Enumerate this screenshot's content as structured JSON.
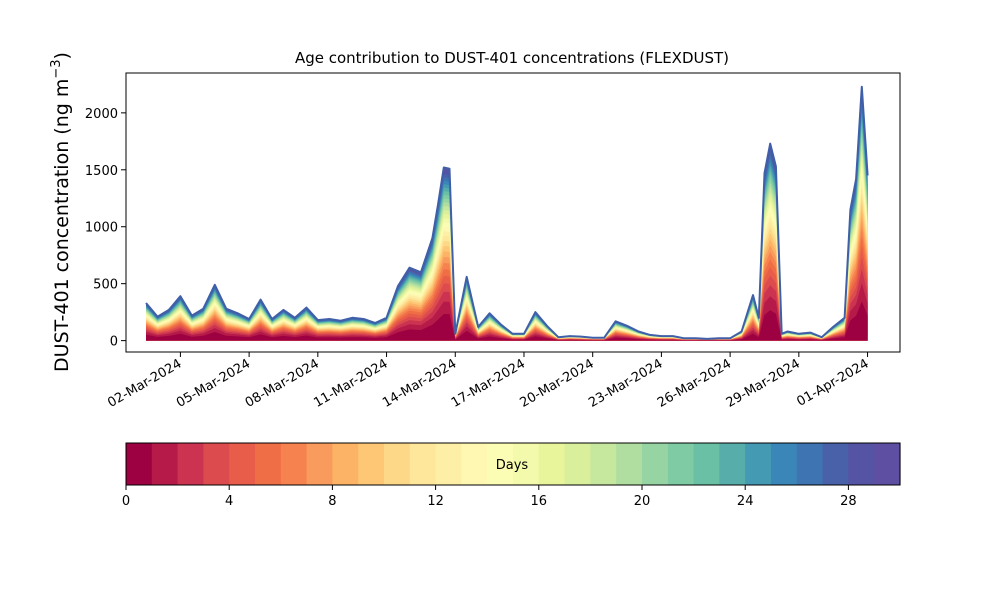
{
  "chart_data": {
    "type": "area",
    "title": "Age contribution to DUST-401 concentrations (FLEXDUST)",
    "ylabel": "DUST-401 concentration (ng m",
    "ylabel_sup": "−3",
    "ylabel_close": ")",
    "ylim": [
      -100,
      2350
    ],
    "yticks": [
      0,
      500,
      1000,
      1500,
      2000
    ],
    "xlim": [
      "2024-02-28T15:00",
      "2024-04-02T10:00"
    ],
    "xticks": [
      "02-Mar-2024",
      "05-Mar-2024",
      "08-Mar-2024",
      "11-Mar-2024",
      "14-Mar-2024",
      "17-Mar-2024",
      "20-Mar-2024",
      "23-Mar-2024",
      "26-Mar-2024",
      "29-Mar-2024",
      "01-Apr-2024"
    ],
    "xtick_dates": [
      "2024-03-02",
      "2024-03-05",
      "2024-03-08",
      "2024-03-11",
      "2024-03-14",
      "2024-03-17",
      "2024-03-20",
      "2024-03-23",
      "2024-03-26",
      "2024-03-29",
      "2024-04-01"
    ],
    "grid": false,
    "colormap": "Spectral",
    "colorbar": {
      "label": "Days",
      "range": [
        0,
        30
      ],
      "ticks": [
        0,
        4,
        8,
        12,
        16,
        20,
        24,
        28
      ],
      "levels": 30,
      "colors": [
        "#9e0142",
        "#b51a49",
        "#cc3350",
        "#dc4b4e",
        "#e85c4a",
        "#f06e45",
        "#f6834f",
        "#f99b5c",
        "#fdb366",
        "#fdc776",
        "#fdd889",
        "#fee79b",
        "#feefa6",
        "#fef8b2",
        "#fbfdb4",
        "#f3faab",
        "#e8f59b",
        "#d9ef9b",
        "#c6e79e",
        "#b0dea0",
        "#97d4a4",
        "#7ecba4",
        "#69c0a4",
        "#56adaa",
        "#4499b3",
        "#3a86b8",
        "#3d74b1",
        "#4861a8",
        "#5553a3",
        "#5e4fa2"
      ]
    },
    "series": {
      "x": [
        "2024-02-29T12:00",
        "2024-03-01T00:00",
        "2024-03-01T12:00",
        "2024-03-02T00:00",
        "2024-03-02T12:00",
        "2024-03-03T00:00",
        "2024-03-03T12:00",
        "2024-03-04T00:00",
        "2024-03-04T12:00",
        "2024-03-05T00:00",
        "2024-03-05T12:00",
        "2024-03-06T00:00",
        "2024-03-06T12:00",
        "2024-03-07T00:00",
        "2024-03-07T12:00",
        "2024-03-08T00:00",
        "2024-03-08T12:00",
        "2024-03-09T00:00",
        "2024-03-09T12:00",
        "2024-03-10T00:00",
        "2024-03-10T12:00",
        "2024-03-11T00:00",
        "2024-03-11T12:00",
        "2024-03-12T00:00",
        "2024-03-12T12:00",
        "2024-03-13T00:00",
        "2024-03-13T06:00",
        "2024-03-13T12:00",
        "2024-03-13T18:00",
        "2024-03-14T00:00",
        "2024-03-14T12:00",
        "2024-03-15T00:00",
        "2024-03-15T12:00",
        "2024-03-16T00:00",
        "2024-03-16T12:00",
        "2024-03-17T00:00",
        "2024-03-17T12:00",
        "2024-03-18T00:00",
        "2024-03-18T12:00",
        "2024-03-19T00:00",
        "2024-03-19T12:00",
        "2024-03-20T00:00",
        "2024-03-20T12:00",
        "2024-03-21T00:00",
        "2024-03-21T12:00",
        "2024-03-22T00:00",
        "2024-03-22T12:00",
        "2024-03-23T00:00",
        "2024-03-23T12:00",
        "2024-03-24T00:00",
        "2024-03-24T12:00",
        "2024-03-25T00:00",
        "2024-03-25T12:00",
        "2024-03-26T00:00",
        "2024-03-26T12:00",
        "2024-03-27T00:00",
        "2024-03-27T06:00",
        "2024-03-27T12:00",
        "2024-03-27T18:00",
        "2024-03-28T00:00",
        "2024-03-28T06:00",
        "2024-03-28T12:00",
        "2024-03-28T18:00",
        "2024-03-29T00:00",
        "2024-03-29T12:00",
        "2024-03-30T00:00",
        "2024-03-30T12:00",
        "2024-03-31T00:00",
        "2024-03-31T06:00",
        "2024-03-31T12:00",
        "2024-03-31T18:00",
        "2024-04-01T00:00"
      ],
      "total": [
        330,
        210,
        270,
        390,
        220,
        280,
        490,
        280,
        240,
        190,
        360,
        190,
        270,
        200,
        290,
        180,
        190,
        175,
        200,
        190,
        155,
        200,
        480,
        640,
        600,
        900,
        1200,
        1520,
        1510,
        60,
        560,
        120,
        240,
        140,
        60,
        60,
        250,
        130,
        30,
        40,
        35,
        25,
        25,
        170,
        130,
        80,
        50,
        40,
        40,
        20,
        20,
        15,
        20,
        20,
        80,
        400,
        200,
        1470,
        1730,
        1530,
        60,
        80,
        70,
        60,
        70,
        30,
        120,
        200,
        1150,
        1420,
        2230,
        1450
      ]
    }
  }
}
